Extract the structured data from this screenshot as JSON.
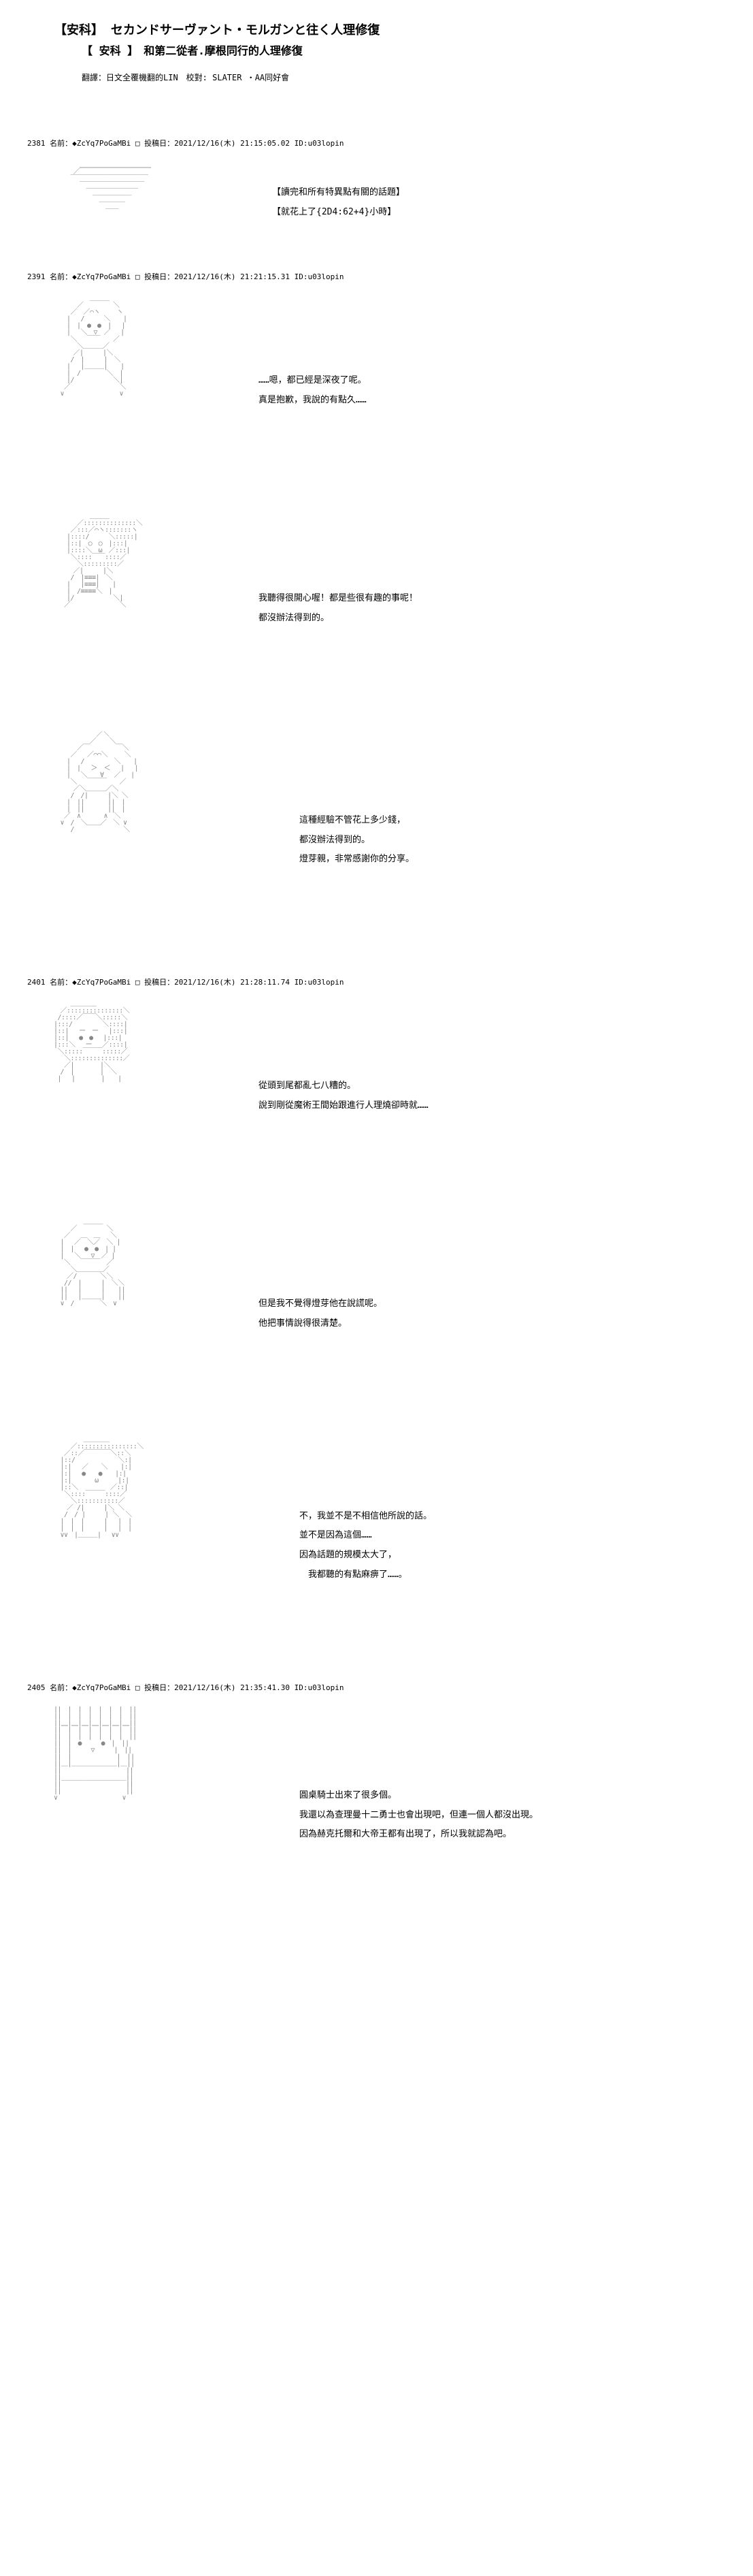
{
  "header": {
    "title_main": "【安科】 セカンドサーヴァント・モルガンと往く人理修復",
    "title_sub": "【 安科 】　和第二從者.摩根同行的人理修復",
    "credits": "翻譯：日文全覆機翻的LIN　校對: SLATER ・AA同好會"
  },
  "posts": [
    {
      "id": "2381",
      "trip": "名前：◆ZcYq7PoGaMBi □ 投稿日：2021/12/16(木) 21:15:05.02 ID:u03lopin",
      "aa_class": "aa-small",
      "aa": "　　　　　　＿＿＿＿＿＿＿＿＿＿＿\n　　　　　／￣￣￣￣￣￣￣￣￣￣￣\n　　　　 ￣￣￣￣￣￣￣￣￣￣￣￣\n　　　　　　￣￣￣￣￣￣￣￣￣￣\n　　　　　　　￣￣￣￣￣￣￣￣\n　　　　　　　　￣￣￣￣￣￣\n　　　　　　　　　￣￣￣￣\n　　　　　　　　　　￣￣",
      "lines": [
        "【讀完和所有特異點有關的話題】",
        "【就花上了{2D4:62+4}小時】"
      ]
    },
    {
      "id": "2391",
      "trip": "名前：◆ZcYq7PoGaMBi □ 投稿日：2021/12/16(木) 21:21:15.31 ID:u03lopin",
      "aa_class": "aa-medium",
      "aa": "　　　　　　　 ＿＿＿\n　　　　　 ／　　　　 ＼\n　　　　 ／　／⌒ヽ　　 ヽ\n　　　　|　 /　　　＼　　|\n　　　　|　|　●　●　|　 |\n　　　　|　 ＼　▽　／　 |\n　　　　 ＼　 ￣￣　　／\n　　　　　 ＼＿＿＿／\n　　　　　／|　　　|＼\n　　　　 /　|　　　|　＼\n　　　　|　 |＿＿＿|　　|\n　　　　|　/　　　　＼　|\n　　　　|/　　　　　　＼|\n　　　 ／　　　　　　　 ＼\n　　　∨　　　　　　　　 ∨",
      "lines": [
        "……嗯，都已經是深夜了呢。",
        "真是抱歉，我說的有點久……"
      ]
    },
    {
      "id": "",
      "trip": "",
      "aa_class": "aa-medium",
      "aa": "　　　　　　　 ＿＿＿\n　　　　　 ／::::::::::::::＼\n　　　　 ／:::／⌒ヽ:::::::ヽ\n　　　　|::::/　　　＼:::::|\n　　　　|::|　○　○　|:::|\n　　　　|::::＼　ω　／:::|\n　　　　 ＼::::￣￣::::／\n　　　　　 ＼:::::::::／\n　　　　　／|　　　|＼\n　　　　 /　|≡≡≡|　＼\n　　　　|　 |≡≡≡|　　|\n　　　　|　/≡≡≡≡＼　|\n　　　　|/　　　　　　＼|\n　　　 ／　　　　　　　 ＼",
      "lines": [
        "我聽得很開心喔！都是些很有趣的事呢！",
        "都沒辦法得到的。"
      ]
    },
    {
      "id": "",
      "trip": "",
      "aa_class": "aa-large",
      "aa": "　　　　　　　　 ／＼\n　　　　　　　 ／　　＼\n　　　　　 ／￣　　　　￣＼\n　　　　 ／　 ／⌒⌒＼　　 ＼\n　　　　|　 /　　　　 ＼　　|\n　　　　|　|　 ＞　＜　 |　 |\n　　　　|　 ＼　　∀　 ／　 |\n　　　　 ＼　 ￣￣￣　　／\n　　　　　／＼＿＿＿／＼\n　　　　 /　/|　　　|＼ ＼\n　　　　|　||　　　 ||　|\n　　　　|　||　　　 ||　|\n　　　 ／　∧　　　 ∧　＼\n　　　∨　/　＼＿＿／　＼ ∨\n　　　　 /　　　　　　　 ＼",
      "lines": [
        "這種經驗不管花上多少錢，",
        "都沒辦法得到的。",
        "燈芽親，非常感謝你的分享。"
      ]
    },
    {
      "id": "2401",
      "trip": "名前：◆ZcYq7PoGaMBi □ 投稿日：2021/12/16(木) 21:28:11.74 ID:u03lopin",
      "aa_class": "aa-medium",
      "aa": "　　　　 ＿＿＿＿\n　　　／:::::::::::::::＼\n　　 /::::／￣￣＼:::::＼\n　　|:::/　　　　 ＼::::|\n　　|::|　 ー　ー　 |:::|\n　　|::|　 ●　●　 |:::|\n　　|:::＼　 ー　 ／::::|\n　　 ＼:::::￣￣￣:::::／\n　　　 ＼::::::::::::::／\n　　　 ／|　　　　|＼\n　　　/　|　　　　|　＼\n　　 |　 |　　　　|　　|",
      "lines": [
        "從頭到尾都亂七八糟的。",
        "說到剛從魔術王間始跟進行人理燒卻時就……"
      ]
    },
    {
      "id": "",
      "trip": "",
      "aa_class": "aa-medium",
      "aa": "　　　　　　 ＿＿＿\n　　　　 ／　　　　 ＼\n　　　 ／　 ＿　＿　 ＼\n　　　|　 ／　＼／　＼ |\n　　　|　|　 ●　●　| |\n　　　|　 ＼　 ▽　／ |\n　　　 ＼　 ￣￣￣　／\n　　　　 ＼＿＿＿＿／\n　　　　／/　　　 ＼＼\n　　　 //　|　　　|　＼＼\n　　　||　 |　　　|　　||\n　　　||　 |＿＿＿|　　||\n　　　∨　/　　　　＼　∨",
      "lines": [
        "但是我不覺得燈芽他在說謊呢。",
        "他把事情說得很清楚。"
      ]
    },
    {
      "id": "",
      "trip": "",
      "aa_class": "aa-large",
      "aa": "　　　　　　 ＿＿＿＿\n　　　　 ／::::::::::::::::＼\n　　　 ／::／￣￣￣￣＼::＼\n　　　|::/　　　　　　 ＼:|\n　　　|:|　 ／　　＼　　|:|\n　　　|:|　 ●　　●　　|:|\n　　　|:|　　　 ω　　　|:|\n　　　|::＼　　　　　／::|\n　　　 ＼::::￣￣￣::::／\n　　　　 ＼:::::::::::／\n　　　　／ /|　　　|＼ ＼\n　　　 /　/ |　　　| ＼　＼\n　　　|　|　|　　　|　 |　|\n　　　|　|　|　　　|　 |　|\n　　　∨∨　|＿＿＿|　 ∨∨",
      "lines": [
        "不，我並不是不相信他所說的話。",
        "並不是因為這個……",
        "因為話題的規模太大了，",
        "　我都聽的有點麻痹了……。"
      ]
    },
    {
      "id": "2405",
      "trip": "名前：◆ZcYq7PoGaMBi □ 投稿日：2021/12/16(木) 21:35:41.30 ID:u03lopin",
      "aa_class": "aa-large",
      "aa": "　　||　|　|　|　|　|　|　||\n　　||　|　|　|　|　|　|　||\n　　||＿|＿|＿|＿|＿|＿|＿||\n　　||￣|￣|￣|￣|￣|￣|￣||\n　　||　|　|　|　|　|　|　||\n　　||　|　●　　　●　|　||\n　　||　|　　　▽　　　|　||\n　　||　|　　　　　　　|　||\n　　||＿|＿＿＿＿＿＿＿|＿||\n　　||　　　　　　　　　　||\n　　||　　　　　　　　　　||\n　　||￣￣￣￣￣￣￣￣￣￣||\n　　||　　　　　　　　　　||\n　　∨　　　　　　　　　　∨",
      "lines": [
        "圓桌騎士出來了很多個。",
        "我還以為查理曼十二勇士也會出現吧，但連一個人都沒出現。",
        "因為赫克托爾和大帝王都有出現了，所以我就認為吧。"
      ]
    }
  ]
}
